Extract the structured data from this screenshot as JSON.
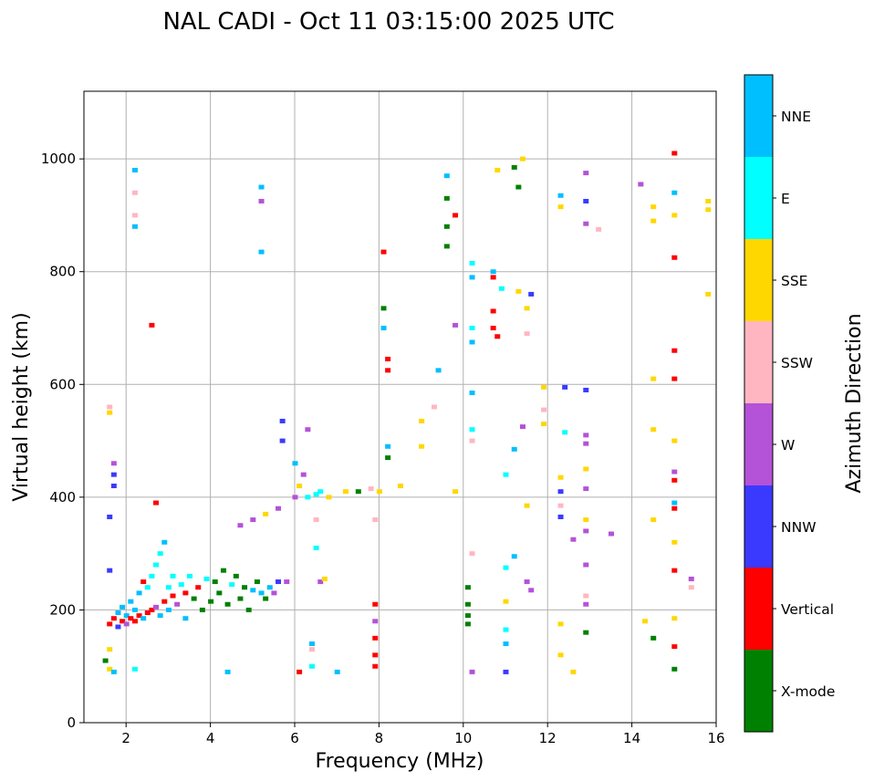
{
  "chart_data": {
    "type": "scatter",
    "title": "NAL CADI - Oct 11 03:15:00 2025 UTC",
    "xlabel": "Frequency (MHz)",
    "ylabel": "Virtual height (km)",
    "xlim": [
      1,
      16
    ],
    "ylim": [
      0,
      1120
    ],
    "xticks": [
      2,
      4,
      6,
      8,
      10,
      12,
      14,
      16
    ],
    "yticks": [
      0,
      200,
      400,
      600,
      800,
      1000
    ],
    "grid": true,
    "colorbar": {
      "label": "Azimuth Direction",
      "position": "right",
      "categories": [
        {
          "name": "X-mode",
          "color": "#008000"
        },
        {
          "name": "Vertical",
          "color": "#ff0000"
        },
        {
          "name": "NNW",
          "color": "#3a3aff"
        },
        {
          "name": "W",
          "color": "#b452d8"
        },
        {
          "name": "SSW",
          "color": "#ffb6c1"
        },
        {
          "name": "SSE",
          "color": "#ffd700"
        },
        {
          "name": "E",
          "color": "#00ffff"
        },
        {
          "name": "NNE",
          "color": "#00bfff"
        }
      ]
    },
    "points": [
      [
        1.5,
        110,
        "X-mode"
      ],
      [
        1.6,
        130,
        "SSE"
      ],
      [
        1.6,
        95,
        "SSE"
      ],
      [
        1.7,
        90,
        "NNE"
      ],
      [
        1.7,
        420,
        "NNW"
      ],
      [
        1.7,
        440,
        "NNW"
      ],
      [
        1.7,
        460,
        "W"
      ],
      [
        1.6,
        560,
        "SSW"
      ],
      [
        1.6,
        550,
        "SSE"
      ],
      [
        1.6,
        365,
        "NNW"
      ],
      [
        1.6,
        270,
        "NNW"
      ],
      [
        1.6,
        175,
        "Vertical"
      ],
      [
        1.7,
        185,
        "Vertical"
      ],
      [
        1.8,
        170,
        "NNW"
      ],
      [
        1.8,
        195,
        "NNE"
      ],
      [
        1.9,
        180,
        "Vertical"
      ],
      [
        1.9,
        205,
        "NNE"
      ],
      [
        2.0,
        175,
        "W"
      ],
      [
        2.0,
        190,
        "NNE"
      ],
      [
        2.1,
        185,
        "Vertical"
      ],
      [
        2.1,
        215,
        "NNE"
      ],
      [
        2.2,
        180,
        "Vertical"
      ],
      [
        2.2,
        200,
        "NNE"
      ],
      [
        2.3,
        190,
        "Vertical"
      ],
      [
        2.3,
        230,
        "NNE"
      ],
      [
        2.4,
        185,
        "NNE"
      ],
      [
        2.4,
        250,
        "Vertical"
      ],
      [
        2.5,
        195,
        "Vertical"
      ],
      [
        2.5,
        240,
        "E"
      ],
      [
        2.6,
        200,
        "Vertical"
      ],
      [
        2.6,
        260,
        "E"
      ],
      [
        2.7,
        205,
        "W"
      ],
      [
        2.7,
        280,
        "E"
      ],
      [
        2.8,
        190,
        "NNE"
      ],
      [
        2.8,
        300,
        "E"
      ],
      [
        2.9,
        215,
        "Vertical"
      ],
      [
        2.9,
        320,
        "NNE"
      ],
      [
        3.0,
        200,
        "NNE"
      ],
      [
        3.0,
        240,
        "E"
      ],
      [
        3.1,
        225,
        "Vertical"
      ],
      [
        3.1,
        260,
        "E"
      ],
      [
        3.2,
        210,
        "W"
      ],
      [
        3.3,
        245,
        "E"
      ],
      [
        3.4,
        185,
        "NNE"
      ],
      [
        3.4,
        230,
        "Vertical"
      ],
      [
        3.5,
        260,
        "E"
      ],
      [
        3.6,
        220,
        "X-mode"
      ],
      [
        3.7,
        240,
        "Vertical"
      ],
      [
        3.8,
        200,
        "X-mode"
      ],
      [
        3.9,
        255,
        "E"
      ],
      [
        4.0,
        215,
        "X-mode"
      ],
      [
        4.1,
        250,
        "X-mode"
      ],
      [
        4.2,
        230,
        "X-mode"
      ],
      [
        4.3,
        270,
        "X-mode"
      ],
      [
        4.4,
        210,
        "X-mode"
      ],
      [
        4.5,
        245,
        "E"
      ],
      [
        4.6,
        260,
        "X-mode"
      ],
      [
        4.7,
        220,
        "X-mode"
      ],
      [
        4.8,
        240,
        "X-mode"
      ],
      [
        4.9,
        200,
        "X-mode"
      ],
      [
        5.0,
        235,
        "NNE"
      ],
      [
        5.1,
        250,
        "X-mode"
      ],
      [
        5.2,
        230,
        "NNE"
      ],
      [
        5.3,
        220,
        "X-mode"
      ],
      [
        5.4,
        240,
        "NNE"
      ],
      [
        5.5,
        230,
        "W"
      ],
      [
        5.6,
        250,
        "NNW"
      ],
      [
        5.8,
        250,
        "W"
      ],
      [
        2.2,
        980,
        "NNE"
      ],
      [
        2.2,
        940,
        "SSW"
      ],
      [
        2.2,
        900,
        "SSW"
      ],
      [
        2.2,
        880,
        "NNE"
      ],
      [
        2.2,
        95,
        "E"
      ],
      [
        2.6,
        705,
        "Vertical"
      ],
      [
        2.7,
        390,
        "Vertical"
      ],
      [
        4.4,
        90,
        "NNE"
      ],
      [
        5.2,
        950,
        "NNE"
      ],
      [
        5.2,
        925,
        "W"
      ],
      [
        5.2,
        835,
        "NNE"
      ],
      [
        4.7,
        350,
        "W"
      ],
      [
        5.0,
        360,
        "W"
      ],
      [
        5.3,
        370,
        "SSE"
      ],
      [
        5.6,
        380,
        "W"
      ],
      [
        5.7,
        500,
        "NNW"
      ],
      [
        5.7,
        535,
        "NNW"
      ],
      [
        6.0,
        400,
        "W"
      ],
      [
        6.0,
        460,
        "NNE"
      ],
      [
        6.1,
        420,
        "SSE"
      ],
      [
        6.2,
        440,
        "W"
      ],
      [
        6.3,
        520,
        "W"
      ],
      [
        6.3,
        400,
        "E"
      ],
      [
        6.5,
        405,
        "E"
      ],
      [
        6.6,
        410,
        "E"
      ],
      [
        6.8,
        400,
        "SSE"
      ],
      [
        7.2,
        410,
        "SSE"
      ],
      [
        7.5,
        410,
        "X-mode"
      ],
      [
        7.8,
        415,
        "SSW"
      ],
      [
        8.0,
        410,
        "SSE"
      ],
      [
        8.5,
        420,
        "SSE"
      ],
      [
        6.1,
        90,
        "Vertical"
      ],
      [
        6.4,
        140,
        "NNE"
      ],
      [
        6.4,
        130,
        "SSW"
      ],
      [
        6.4,
        100,
        "E"
      ],
      [
        6.6,
        250,
        "W"
      ],
      [
        6.7,
        255,
        "SSE"
      ],
      [
        6.5,
        310,
        "E"
      ],
      [
        6.5,
        360,
        "SSW"
      ],
      [
        7.0,
        90,
        "NNE"
      ],
      [
        7.9,
        210,
        "Vertical"
      ],
      [
        7.9,
        180,
        "W"
      ],
      [
        7.9,
        150,
        "Vertical"
      ],
      [
        7.9,
        120,
        "Vertical"
      ],
      [
        7.9,
        100,
        "Vertical"
      ],
      [
        7.9,
        360,
        "SSW"
      ],
      [
        8.1,
        735,
        "X-mode"
      ],
      [
        8.1,
        700,
        "NNE"
      ],
      [
        8.1,
        835,
        "Vertical"
      ],
      [
        8.2,
        645,
        "Vertical"
      ],
      [
        8.2,
        625,
        "Vertical"
      ],
      [
        8.2,
        490,
        "NNE"
      ],
      [
        8.2,
        470,
        "X-mode"
      ],
      [
        9.0,
        535,
        "SSE"
      ],
      [
        9.0,
        490,
        "SSE"
      ],
      [
        9.3,
        560,
        "SSW"
      ],
      [
        9.4,
        625,
        "NNE"
      ],
      [
        9.6,
        970,
        "NNE"
      ],
      [
        9.6,
        930,
        "X-mode"
      ],
      [
        9.6,
        880,
        "X-mode"
      ],
      [
        9.6,
        845,
        "X-mode"
      ],
      [
        9.8,
        900,
        "Vertical"
      ],
      [
        9.8,
        705,
        "W"
      ],
      [
        9.8,
        410,
        "SSE"
      ],
      [
        10.1,
        240,
        "X-mode"
      ],
      [
        10.1,
        210,
        "X-mode"
      ],
      [
        10.1,
        190,
        "X-mode"
      ],
      [
        10.1,
        175,
        "X-mode"
      ],
      [
        10.2,
        90,
        "W"
      ],
      [
        10.2,
        300,
        "SSW"
      ],
      [
        10.2,
        500,
        "SSW"
      ],
      [
        10.2,
        520,
        "E"
      ],
      [
        10.2,
        585,
        "NNE"
      ],
      [
        10.2,
        675,
        "NNE"
      ],
      [
        10.2,
        700,
        "E"
      ],
      [
        10.2,
        790,
        "NNE"
      ],
      [
        10.2,
        815,
        "E"
      ],
      [
        10.7,
        800,
        "NNE"
      ],
      [
        10.7,
        790,
        "Vertical"
      ],
      [
        10.7,
        730,
        "Vertical"
      ],
      [
        10.7,
        700,
        "Vertical"
      ],
      [
        10.8,
        685,
        "Vertical"
      ],
      [
        10.9,
        770,
        "E"
      ],
      [
        10.8,
        980,
        "SSE"
      ],
      [
        11.0,
        440,
        "E"
      ],
      [
        11.0,
        275,
        "E"
      ],
      [
        11.0,
        215,
        "SSE"
      ],
      [
        11.0,
        165,
        "E"
      ],
      [
        11.0,
        140,
        "NNE"
      ],
      [
        11.0,
        90,
        "NNW"
      ],
      [
        11.2,
        985,
        "X-mode"
      ],
      [
        11.3,
        950,
        "X-mode"
      ],
      [
        11.3,
        765,
        "SSE"
      ],
      [
        11.2,
        485,
        "NNE"
      ],
      [
        11.2,
        295,
        "NNE"
      ],
      [
        11.4,
        1000,
        "SSE"
      ],
      [
        11.5,
        735,
        "SSE"
      ],
      [
        11.6,
        760,
        "NNW"
      ],
      [
        11.5,
        690,
        "SSW"
      ],
      [
        11.4,
        525,
        "W"
      ],
      [
        11.5,
        385,
        "SSE"
      ],
      [
        11.5,
        250,
        "W"
      ],
      [
        11.6,
        235,
        "W"
      ],
      [
        11.9,
        595,
        "SSE"
      ],
      [
        11.9,
        555,
        "SSW"
      ],
      [
        11.9,
        530,
        "SSE"
      ],
      [
        12.3,
        935,
        "NNE"
      ],
      [
        12.3,
        915,
        "SSE"
      ],
      [
        12.4,
        595,
        "NNW"
      ],
      [
        12.4,
        515,
        "E"
      ],
      [
        12.3,
        435,
        "SSE"
      ],
      [
        12.3,
        410,
        "NNW"
      ],
      [
        12.3,
        385,
        "SSW"
      ],
      [
        12.3,
        365,
        "NNW"
      ],
      [
        12.3,
        175,
        "SSE"
      ],
      [
        12.3,
        120,
        "SSE"
      ],
      [
        12.6,
        90,
        "SSE"
      ],
      [
        12.6,
        325,
        "W"
      ],
      [
        12.9,
        975,
        "W"
      ],
      [
        12.9,
        925,
        "NNW"
      ],
      [
        12.9,
        885,
        "W"
      ],
      [
        12.9,
        590,
        "NNW"
      ],
      [
        12.9,
        510,
        "W"
      ],
      [
        12.9,
        495,
        "W"
      ],
      [
        12.9,
        450,
        "SSE"
      ],
      [
        12.9,
        415,
        "W"
      ],
      [
        12.9,
        360,
        "SSE"
      ],
      [
        12.9,
        340,
        "W"
      ],
      [
        12.9,
        280,
        "W"
      ],
      [
        12.9,
        225,
        "SSW"
      ],
      [
        12.9,
        210,
        "W"
      ],
      [
        12.9,
        160,
        "X-mode"
      ],
      [
        13.2,
        875,
        "SSW"
      ],
      [
        13.5,
        335,
        "W"
      ],
      [
        14.2,
        955,
        "W"
      ],
      [
        14.3,
        180,
        "SSE"
      ],
      [
        14.5,
        915,
        "SSE"
      ],
      [
        14.5,
        890,
        "SSE"
      ],
      [
        14.5,
        610,
        "SSE"
      ],
      [
        14.5,
        520,
        "SSE"
      ],
      [
        14.5,
        360,
        "SSE"
      ],
      [
        14.5,
        150,
        "X-mode"
      ],
      [
        15.0,
        1010,
        "Vertical"
      ],
      [
        15.0,
        940,
        "NNE"
      ],
      [
        15.0,
        900,
        "SSE"
      ],
      [
        15.0,
        825,
        "Vertical"
      ],
      [
        15.0,
        660,
        "Vertical"
      ],
      [
        15.0,
        610,
        "Vertical"
      ],
      [
        15.0,
        500,
        "SSE"
      ],
      [
        15.0,
        445,
        "W"
      ],
      [
        15.0,
        430,
        "Vertical"
      ],
      [
        15.0,
        390,
        "NNE"
      ],
      [
        15.0,
        380,
        "Vertical"
      ],
      [
        15.0,
        320,
        "SSE"
      ],
      [
        15.0,
        270,
        "Vertical"
      ],
      [
        15.0,
        185,
        "SSE"
      ],
      [
        15.0,
        135,
        "Vertical"
      ],
      [
        15.0,
        95,
        "X-mode"
      ],
      [
        15.4,
        255,
        "W"
      ],
      [
        15.4,
        240,
        "SSW"
      ],
      [
        15.8,
        925,
        "SSE"
      ],
      [
        15.8,
        910,
        "SSE"
      ],
      [
        15.8,
        760,
        "SSE"
      ]
    ]
  }
}
